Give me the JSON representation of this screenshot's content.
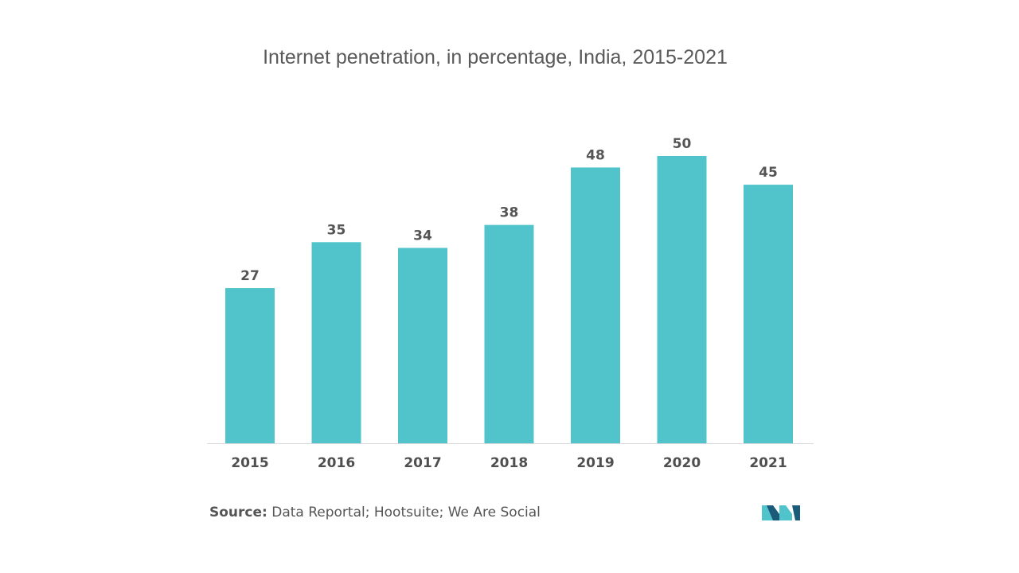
{
  "chart_data": {
    "type": "bar",
    "title": "Internet penetration, in percentage, India, 2015-2021",
    "categories": [
      "2015",
      "2016",
      "2017",
      "2018",
      "2019",
      "2020",
      "2021"
    ],
    "values": [
      27,
      35,
      34,
      38,
      48,
      50,
      45
    ],
    "ylim": [
      0,
      50
    ],
    "grid": false,
    "bar_color": "#50c4ca",
    "axis_color": "#d9d9d9"
  },
  "source": {
    "label": "Source:",
    "text": "Data Reportal; Hootsuite; We Are Social"
  },
  "logo": {
    "icon": "mordor-logo-icon",
    "color_dark": "#1b5b7a",
    "color_light": "#50c4ca"
  }
}
